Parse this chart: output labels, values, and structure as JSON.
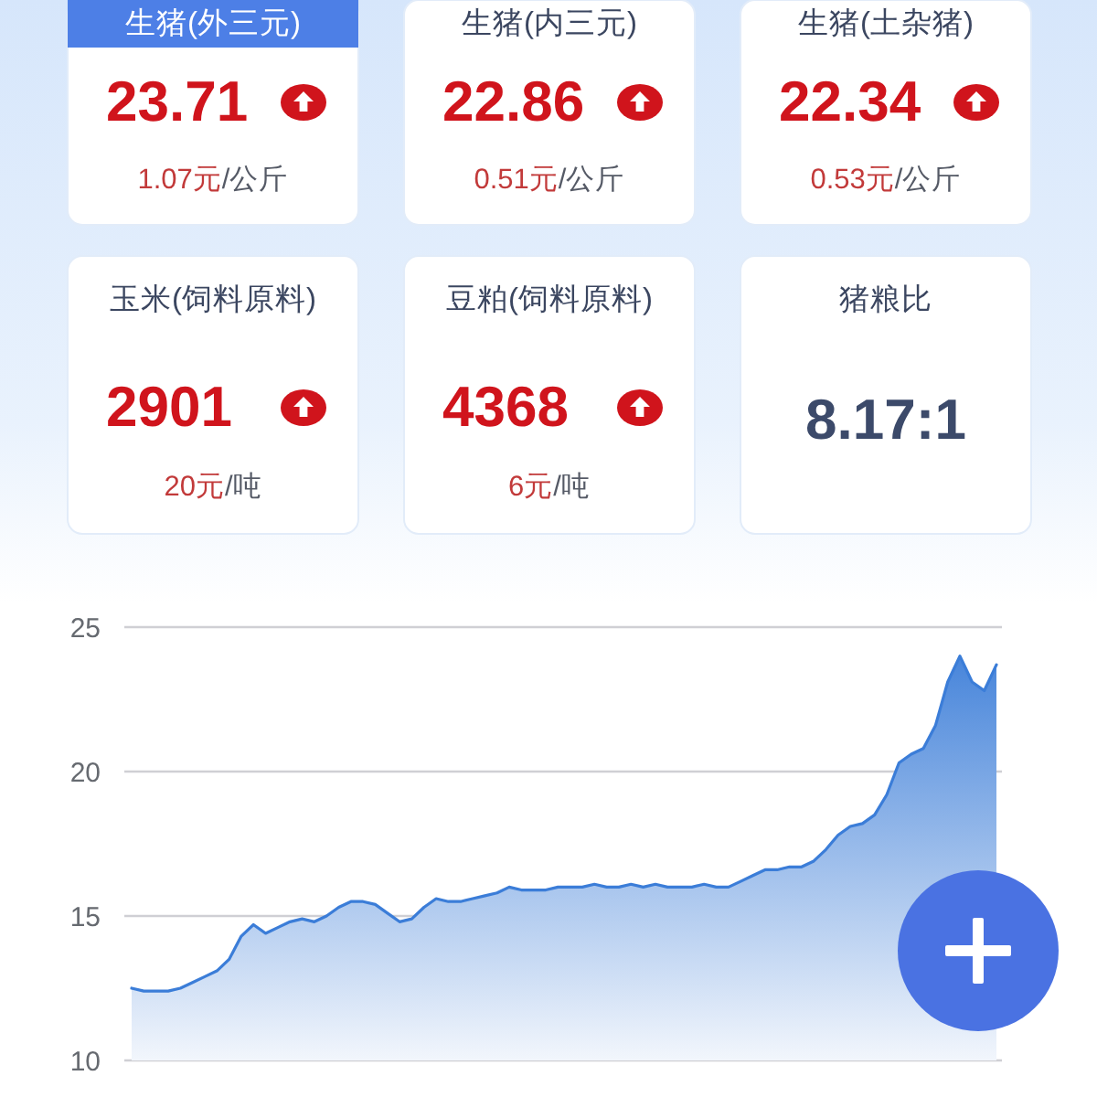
{
  "chart_data": [
    {
      "type": "other",
      "title": "生猪(外三元)",
      "annotations": [
        "23.71",
        "1.07元/公斤"
      ]
    },
    {
      "type": "other",
      "title": "生猪(内三元)",
      "annotations": [
        "22.86",
        "0.51元/公斤"
      ]
    },
    {
      "type": "other",
      "title": "生猪(土杂猪)",
      "annotations": [
        "22.34",
        "0.53元/公斤"
      ]
    },
    {
      "type": "other",
      "title": "玉米(饲料原料)",
      "annotations": [
        "2901",
        "20元/吨"
      ]
    },
    {
      "type": "other",
      "title": "豆粕(饲料原料)",
      "annotations": [
        "4368",
        "6元/吨"
      ]
    },
    {
      "type": "other",
      "title": "猪粮比",
      "annotations": [
        "8.17:1"
      ]
    },
    {
      "type": "area",
      "categories": [
        null,
        null,
        null,
        null,
        null,
        null,
        null,
        null,
        null,
        null,
        null,
        null,
        null,
        null,
        null,
        null,
        null,
        null,
        null,
        null,
        null,
        null,
        null,
        null,
        null,
        null,
        null,
        null,
        null,
        null,
        null,
        null,
        null,
        null,
        null,
        null,
        null,
        null,
        null,
        null,
        null,
        null,
        null,
        null,
        null,
        null,
        null,
        null,
        null,
        null,
        null,
        null,
        null,
        null,
        null,
        null,
        null,
        null,
        null,
        null,
        null,
        null,
        null,
        null,
        null,
        null,
        null,
        null,
        null,
        null,
        null,
        null
      ],
      "values": [
        12.5,
        12.4,
        12.4,
        12.4,
        12.5,
        12.7,
        12.9,
        13.1,
        13.5,
        14.3,
        14.7,
        14.4,
        14.6,
        14.8,
        14.9,
        14.8,
        15.0,
        15.3,
        15.5,
        15.5,
        15.4,
        15.1,
        14.8,
        14.9,
        15.3,
        15.6,
        15.5,
        15.5,
        15.6,
        15.7,
        15.8,
        16.0,
        15.9,
        15.9,
        15.9,
        16.0,
        16.0,
        16.0,
        16.1,
        16.0,
        16.0,
        16.1,
        16.0,
        16.1,
        16.0,
        16.0,
        16.0,
        16.1,
        16.0,
        16.0,
        16.2,
        16.4,
        16.6,
        16.6,
        16.7,
        16.7,
        16.9,
        17.3,
        17.8,
        18.1,
        18.2,
        18.5,
        19.2,
        20.3,
        20.6,
        20.8,
        21.6,
        23.1,
        24.0,
        23.1,
        22.8,
        23.7
      ],
      "color": "#3b7dd8",
      "ylim": [
        10,
        25
      ],
      "yticks": [
        10,
        15,
        20,
        25
      ],
      "grid": "y"
    }
  ]
}
